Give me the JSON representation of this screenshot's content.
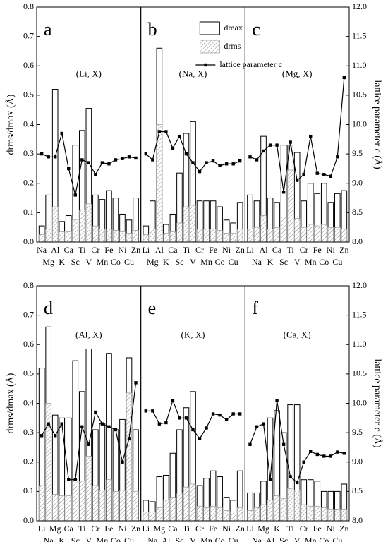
{
  "chart_data": [
    {
      "type": "bar",
      "panel_label": "a",
      "annotation": "(Li, X)",
      "ylabel": "drms/dmax (Å)",
      "categories": [
        "Na",
        "Mg",
        "Al",
        "K",
        "Ca",
        "Sc",
        "Ti",
        "V",
        "Cr",
        "Mn",
        "Fe",
        "Co",
        "Ni",
        "Cu",
        "Zn"
      ],
      "series": [
        {
          "name": "dmax",
          "type": "bar",
          "color": "#000000",
          "values": [
            0.055,
            0.16,
            0.52,
            0.07,
            0.09,
            0.33,
            0.38,
            0.455,
            0.16,
            0.145,
            0.175,
            0.15,
            0.095,
            0.075,
            0.15
          ]
        },
        {
          "name": "drms",
          "type": "bar",
          "hatch": true,
          "color": "#888888",
          "values": [
            0.025,
            0.045,
            0.12,
            0.035,
            0.035,
            0.075,
            0.11,
            0.13,
            0.055,
            0.045,
            0.045,
            0.04,
            0.035,
            0.03,
            0.04
          ]
        },
        {
          "name": "lattice parameter c",
          "type": "line",
          "axis": "y2",
          "color": "#000000",
          "values": [
            9.5,
            9.45,
            9.45,
            9.85,
            9.25,
            8.8,
            9.4,
            9.35,
            9.15,
            9.35,
            9.33,
            9.4,
            9.42,
            9.45,
            9.43
          ]
        }
      ],
      "ylim": [
        0,
        0.8
      ],
      "yticks": [
        {
          "value": 0,
          "label": "0.0"
        },
        0.1,
        0.2,
        0.3,
        0.4,
        0.5,
        0.6,
        0.7,
        0.8
      ],
      "y2lim": [
        8,
        12
      ]
    },
    {
      "type": "bar",
      "panel_label": "b",
      "annotation": "(Na, X)",
      "legend": "upper right",
      "categories": [
        "Li",
        "Mg",
        "Al",
        "K",
        "Ca",
        "Sc",
        "Ti",
        "V",
        "Cr",
        "Mn",
        "Fe",
        "Co",
        "Ni",
        "Cu",
        "Zn"
      ],
      "series": [
        {
          "name": "dmax",
          "type": "bar",
          "color": "#000000",
          "values": [
            0.055,
            0.14,
            0.66,
            0.06,
            0.095,
            0.235,
            0.37,
            0.41,
            0.14,
            0.14,
            0.14,
            0.12,
            0.075,
            0.065,
            0.135
          ]
        },
        {
          "name": "drms",
          "type": "bar",
          "hatch": true,
          "color": "#888888",
          "values": [
            0.025,
            0.045,
            0.4,
            0.03,
            0.035,
            0.065,
            0.12,
            0.125,
            0.045,
            0.045,
            0.045,
            0.04,
            0.03,
            0.03,
            0.045
          ]
        },
        {
          "name": "lattice parameter c",
          "type": "line",
          "axis": "y2",
          "color": "#000000",
          "values": [
            9.5,
            9.4,
            9.88,
            9.88,
            9.6,
            9.8,
            9.5,
            9.35,
            9.2,
            9.35,
            9.38,
            9.3,
            9.33,
            9.33,
            9.38
          ]
        }
      ],
      "ylim": [
        0,
        0.8
      ],
      "y2lim": [
        8,
        12
      ]
    },
    {
      "type": "bar",
      "panel_label": "c",
      "annotation": "(Mg, X)",
      "y2label": "lattice parameter c (Å)",
      "categories": [
        "Li",
        "Na",
        "Al",
        "K",
        "Ca",
        "Sc",
        "Ti",
        "V",
        "Cr",
        "Mn",
        "Fe",
        "Co",
        "Ni",
        "Cu",
        "Zn"
      ],
      "series": [
        {
          "name": "dmax",
          "type": "bar",
          "color": "#000000",
          "values": [
            0.16,
            0.14,
            0.36,
            0.15,
            0.135,
            0.33,
            0.33,
            0.305,
            0.14,
            0.2,
            0.165,
            0.2,
            0.135,
            0.165,
            0.175
          ]
        },
        {
          "name": "drms",
          "type": "bar",
          "hatch": true,
          "color": "#888888",
          "values": [
            0.045,
            0.05,
            0.09,
            0.045,
            0.05,
            0.085,
            0.245,
            0.08,
            0.05,
            0.06,
            0.055,
            0.06,
            0.05,
            0.05,
            0.045
          ]
        },
        {
          "name": "lattice parameter c",
          "type": "line",
          "axis": "y2",
          "color": "#000000",
          "values": [
            9.45,
            9.4,
            9.55,
            9.65,
            9.65,
            8.85,
            9.7,
            9.05,
            9.15,
            9.8,
            9.17,
            9.15,
            9.12,
            9.45,
            10.8
          ]
        }
      ],
      "ylim": [
        0,
        0.8
      ],
      "y2lim": [
        8,
        12
      ],
      "y2ticks": [
        {
          "value": 8,
          "label": "8.0"
        },
        8.5,
        {
          "value": 9,
          "label": "9.0"
        },
        9.5,
        {
          "value": 10,
          "label": "10.0"
        },
        10.5,
        {
          "value": 11,
          "label": "11.0"
        },
        11.5,
        {
          "value": 12,
          "label": "12.0"
        }
      ]
    },
    {
      "type": "bar",
      "panel_label": "d",
      "annotation": "(Al, X)",
      "ylabel": "drms/dmax (Å)",
      "categories": [
        "Li",
        "Na",
        "Mg",
        "K",
        "Ca",
        "Sc",
        "Ti",
        "V",
        "Cr",
        "Mn",
        "Fe",
        "Co",
        "Ni",
        "Cu",
        "Zn"
      ],
      "series": [
        {
          "name": "dmax",
          "type": "bar",
          "color": "#000000",
          "values": [
            0.52,
            0.66,
            0.36,
            0.35,
            0.35,
            0.545,
            0.44,
            0.585,
            0.31,
            0.33,
            0.57,
            0.31,
            0.345,
            0.555,
            0.31
          ]
        },
        {
          "name": "drms",
          "type": "bar",
          "hatch": true,
          "color": "#888888",
          "values": [
            0.12,
            0.4,
            0.09,
            0.085,
            0.085,
            0.14,
            0.135,
            0.22,
            0.12,
            0.105,
            0.14,
            0.1,
            0.105,
            0.435,
            0.1
          ]
        },
        {
          "name": "lattice parameter c",
          "type": "line",
          "axis": "y2",
          "color": "#000000",
          "values": [
            9.45,
            9.65,
            9.45,
            9.65,
            8.7,
            8.7,
            9.6,
            9.3,
            9.85,
            9.65,
            9.6,
            9.55,
            9.0,
            9.4,
            10.35
          ]
        }
      ],
      "ylim": [
        0,
        0.8
      ],
      "yticks": [
        {
          "value": 0,
          "label": "0.0"
        },
        0.1,
        0.2,
        0.3,
        0.4,
        0.5,
        0.6,
        0.7,
        0.8
      ],
      "y2lim": [
        8,
        12
      ]
    },
    {
      "type": "bar",
      "panel_label": "e",
      "annotation": "(K, X)",
      "categories": [
        "Li",
        "Na",
        "Mg",
        "Al",
        "Ca",
        "Sc",
        "Ti",
        "V",
        "Cr",
        "Mn",
        "Fe",
        "Co",
        "Ni",
        "Cu",
        "Zn"
      ],
      "series": [
        {
          "name": "dmax",
          "type": "bar",
          "color": "#000000",
          "values": [
            0.07,
            0.065,
            0.15,
            0.155,
            0.23,
            0.31,
            0.385,
            0.44,
            0.12,
            0.145,
            0.17,
            0.15,
            0.08,
            0.07,
            0.17
          ]
        },
        {
          "name": "drms",
          "type": "bar",
          "hatch": true,
          "color": "#888888",
          "values": [
            0.03,
            0.03,
            0.045,
            0.07,
            0.08,
            0.095,
            0.115,
            0.125,
            0.05,
            0.045,
            0.05,
            0.045,
            0.035,
            0.03,
            0.045
          ]
        },
        {
          "name": "lattice parameter c",
          "type": "line",
          "axis": "y2",
          "color": "#000000",
          "values": [
            9.87,
            9.87,
            9.65,
            9.67,
            10.05,
            9.75,
            9.75,
            9.55,
            9.4,
            9.58,
            9.82,
            9.8,
            9.72,
            9.82,
            9.82
          ]
        }
      ],
      "ylim": [
        0,
        0.8
      ],
      "y2lim": [
        8,
        12
      ]
    },
    {
      "type": "bar",
      "panel_label": "f",
      "annotation": "(Ca, X)",
      "y2label": "lattice parameter c (Å)",
      "categories": [
        "Li",
        "Na",
        "Mg",
        "Al",
        "K",
        "Sc",
        "Ti",
        "V",
        "Cr",
        "Mn",
        "Fe",
        "Co",
        "Ni",
        "Cu",
        "Zn"
      ],
      "series": [
        {
          "name": "dmax",
          "type": "bar",
          "color": "#000000",
          "values": [
            0.095,
            0.095,
            0.135,
            0.35,
            0.375,
            0.3,
            0.395,
            0.395,
            0.14,
            0.14,
            0.135,
            0.1,
            0.1,
            0.1,
            0.125
          ]
        },
        {
          "name": "drms",
          "type": "bar",
          "hatch": true,
          "color": "#888888",
          "values": [
            0.035,
            0.045,
            0.055,
            0.07,
            0.085,
            0.075,
            0.11,
            0.105,
            0.055,
            0.05,
            0.05,
            0.045,
            0.04,
            0.04,
            0.04
          ]
        },
        {
          "name": "lattice parameter c",
          "type": "line",
          "axis": "y2",
          "color": "#000000",
          "values": [
            9.3,
            9.6,
            9.65,
            8.7,
            10.05,
            9.3,
            8.75,
            8.65,
            9.0,
            9.18,
            9.13,
            9.1,
            9.1,
            9.17,
            9.15
          ]
        }
      ],
      "ylim": [
        0,
        0.8
      ],
      "y2lim": [
        8,
        12
      ],
      "y2ticks": [
        {
          "value": 8,
          "label": "8.0"
        },
        8.5,
        {
          "value": 9,
          "label": "9.0"
        },
        9.5,
        {
          "value": 10,
          "label": "10.0"
        },
        10.5,
        {
          "value": 11,
          "label": "11.0"
        },
        11.5,
        {
          "value": 12,
          "label": "12.0"
        }
      ]
    }
  ]
}
